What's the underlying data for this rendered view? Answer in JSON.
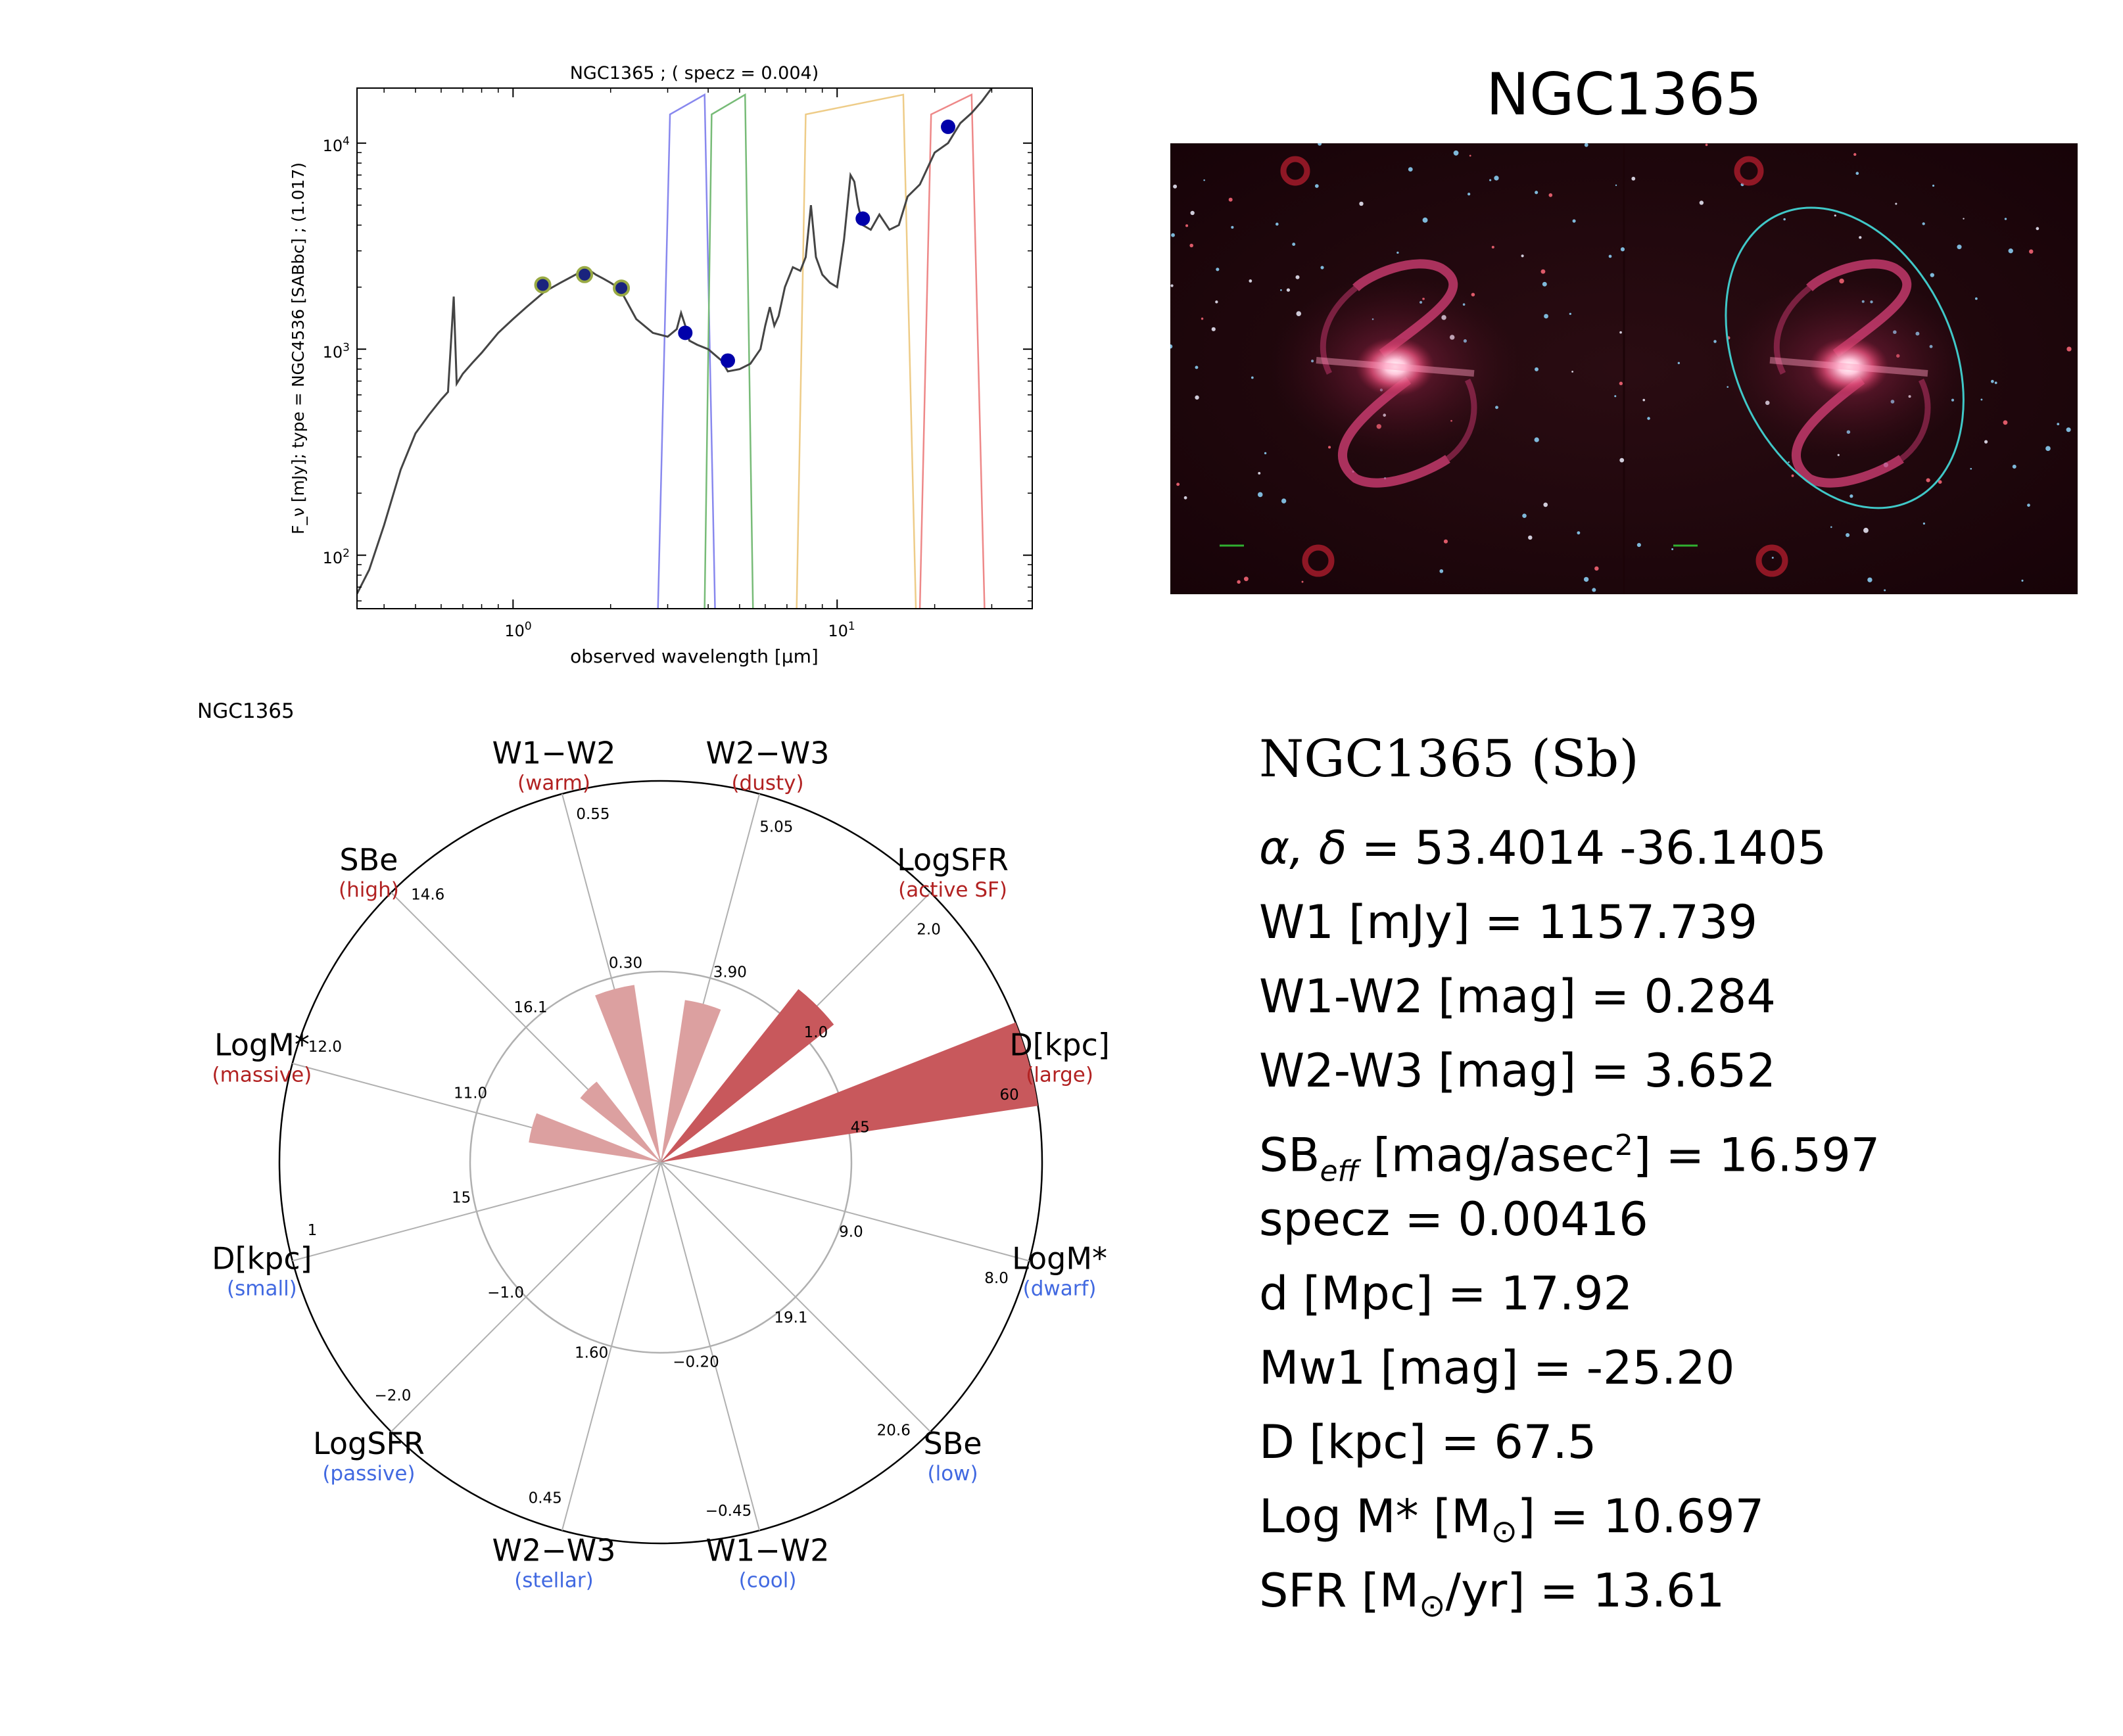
{
  "chart_data": [
    {
      "type": "line",
      "title": "NGC1365 ; ( specz = 0.004)",
      "xlabel": "observed wavelength [μm]",
      "ylabel": "F_ν [mJy];  type = NGC4536 [SABbc] ; (1.017)",
      "xscale": "log",
      "yscale": "log",
      "xlim": [
        0.33,
        40
      ],
      "ylim": [
        55,
        18500
      ],
      "x_tick_labels": [
        "10^0",
        "10^1"
      ],
      "y_tick_labels": [
        "10^2",
        "10^3",
        "10^4"
      ],
      "series": [
        {
          "role": "template SED",
          "color": "#444444",
          "x": [
            0.33,
            0.36,
            0.4,
            0.45,
            0.5,
            0.55,
            0.6,
            0.63,
            0.656,
            0.67,
            0.7,
            0.75,
            0.8,
            0.9,
            1.0,
            1.1,
            1.25,
            1.4,
            1.6,
            1.7,
            1.8,
            1.9,
            2.0,
            2.1,
            2.2,
            2.4,
            2.7,
            3.0,
            3.2,
            3.3,
            3.4,
            3.5,
            3.7,
            4.0,
            4.4,
            4.6,
            5.0,
            5.4,
            5.8,
            6.0,
            6.2,
            6.4,
            6.6,
            6.9,
            7.3,
            7.7,
            8.0,
            8.3,
            8.6,
            9.0,
            9.5,
            10.0,
            10.5,
            11.0,
            11.3,
            11.6,
            12.0,
            12.7,
            13.5,
            14.5,
            15.5,
            16.5,
            18.0,
            20.0,
            22.0,
            24.0,
            26.0,
            28.0,
            30.0
          ],
          "y": [
            65,
            85,
            140,
            260,
            390,
            480,
            570,
            620,
            1800,
            680,
            760,
            860,
            960,
            1200,
            1400,
            1600,
            1900,
            2100,
            2350,
            2450,
            2300,
            2200,
            2100,
            2000,
            1800,
            1400,
            1200,
            1150,
            1250,
            1500,
            1300,
            1100,
            1050,
            1000,
            880,
            780,
            800,
            850,
            1000,
            1300,
            1600,
            1300,
            1450,
            2000,
            2500,
            2400,
            2800,
            5000,
            2800,
            2300,
            2100,
            2000,
            3400,
            7000,
            6500,
            5000,
            4000,
            3800,
            4500,
            3800,
            4000,
            5500,
            6300,
            9000,
            10000,
            12500,
            14000,
            16000,
            18500
          ]
        },
        {
          "role": "2MASS photometry",
          "color": "#99aa44",
          "x": [
            1.235,
            1.662,
            2.159
          ],
          "y": [
            2050,
            2300,
            1980
          ]
        },
        {
          "role": "WISE photometry",
          "color": "#0000aa",
          "x": [
            3.4,
            4.6,
            12,
            22
          ],
          "y": [
            1200,
            880,
            4300,
            12000
          ]
        }
      ],
      "filter_curves": [
        {
          "band": "W1",
          "color": "#8888ee"
        },
        {
          "band": "W2",
          "color": "#77bb77"
        },
        {
          "band": "W3",
          "color": "#eecc88"
        },
        {
          "band": "W4",
          "color": "#ee8888"
        }
      ]
    },
    {
      "type": "radar",
      "title": "NGC1365",
      "axes": [
        {
          "label": "W1−W2",
          "sub": "(warm)",
          "sub_color": "#b22222",
          "inner_tick": "0.30",
          "outer_tick": "0.55"
        },
        {
          "label": "W2−W3",
          "sub": "(dusty)",
          "sub_color": "#b22222",
          "inner_tick": "3.90",
          "outer_tick": "5.05"
        },
        {
          "label": "LogSFR",
          "sub": "(active SF)",
          "sub_color": "#b22222",
          "inner_tick": "1.0",
          "outer_tick": "2.0"
        },
        {
          "label": "D[kpc]",
          "sub": "(large)",
          "sub_color": "#b22222",
          "inner_tick": "45",
          "outer_tick": "60"
        },
        {
          "label": "LogM*",
          "sub": "(dwarf)",
          "sub_color": "#4169e1",
          "inner_tick": "9.0",
          "outer_tick": "8.0"
        },
        {
          "label": "SBe",
          "sub": "(low)",
          "sub_color": "#4169e1",
          "inner_tick": "19.1",
          "outer_tick": "20.6"
        },
        {
          "label": "W1−W2",
          "sub": "(cool)",
          "sub_color": "#4169e1",
          "inner_tick": "−0.20",
          "outer_tick": "−0.45"
        },
        {
          "label": "W2−W3",
          "sub": "(stellar)",
          "sub_color": "#4169e1",
          "inner_tick": "1.60",
          "outer_tick": "0.45"
        },
        {
          "label": "LogSFR",
          "sub": "(passive)",
          "sub_color": "#4169e1",
          "inner_tick": "−1.0",
          "outer_tick": "−2.0"
        },
        {
          "label": "D[kpc]",
          "sub": "(small)",
          "sub_color": "#4169e1",
          "inner_tick": "15",
          "outer_tick": "1"
        },
        {
          "label": "LogM*",
          "sub": "(massive)",
          "sub_color": "#b22222",
          "inner_tick": "11.0",
          "outer_tick": "12.0"
        },
        {
          "label": "SBe",
          "sub": "(high)",
          "sub_color": "#b22222",
          "inner_tick": "16.1",
          "outer_tick": "14.6"
        }
      ],
      "bars": [
        {
          "axis": "W1−W2 (warm)",
          "value": 0.284,
          "fraction": 0.47
        },
        {
          "axis": "W2−W3 (dusty)",
          "value": 3.652,
          "fraction": 0.43
        },
        {
          "axis": "LogSFR (active SF)",
          "value": 1.134,
          "fraction": 0.58
        },
        {
          "axis": "D[kpc] (large)",
          "value": 67.5,
          "fraction": 1.0
        },
        {
          "axis": "LogM* (massive)",
          "value": 10.697,
          "fraction": 0.35
        },
        {
          "axis": "SBe (high)",
          "value": 16.597,
          "fraction": 0.27
        }
      ],
      "colors": {
        "bar_strong": "#c8585c",
        "bar_light": "#dca0a0"
      }
    }
  ],
  "image": {
    "title": "NGC1365",
    "description_icon": "galaxy-image"
  },
  "info": {
    "name": "NGC1365  (Sb)",
    "lines": {
      "coords_prefix": "α, δ",
      "coords_value": " = 53.4014 -36.1405",
      "w1": "W1 [mJy] = 1157.739",
      "w1w2": "W1-W2 [mag] = 0.284",
      "w2w3": "W2-W3 [mag] = 3.652",
      "sb_prefix": "SB",
      "sb_sub": "eff",
      "sb_unit": " [mag/asec",
      "sb_sup": "2",
      "sb_value": "] = 16.597",
      "specz": "specz = 0.00416",
      "dist": "d [Mpc] = 17.92",
      "mw1": "Mw1 [mag] = -25.20",
      "diam": "D [kpc] = 67.5",
      "mstar_prefix": "Log M* [M",
      "mstar_value": "] = 10.697",
      "sfr_prefix": "SFR [M",
      "sfr_value": "/yr] = 13.61",
      "sun_symbol": "⊙"
    }
  }
}
